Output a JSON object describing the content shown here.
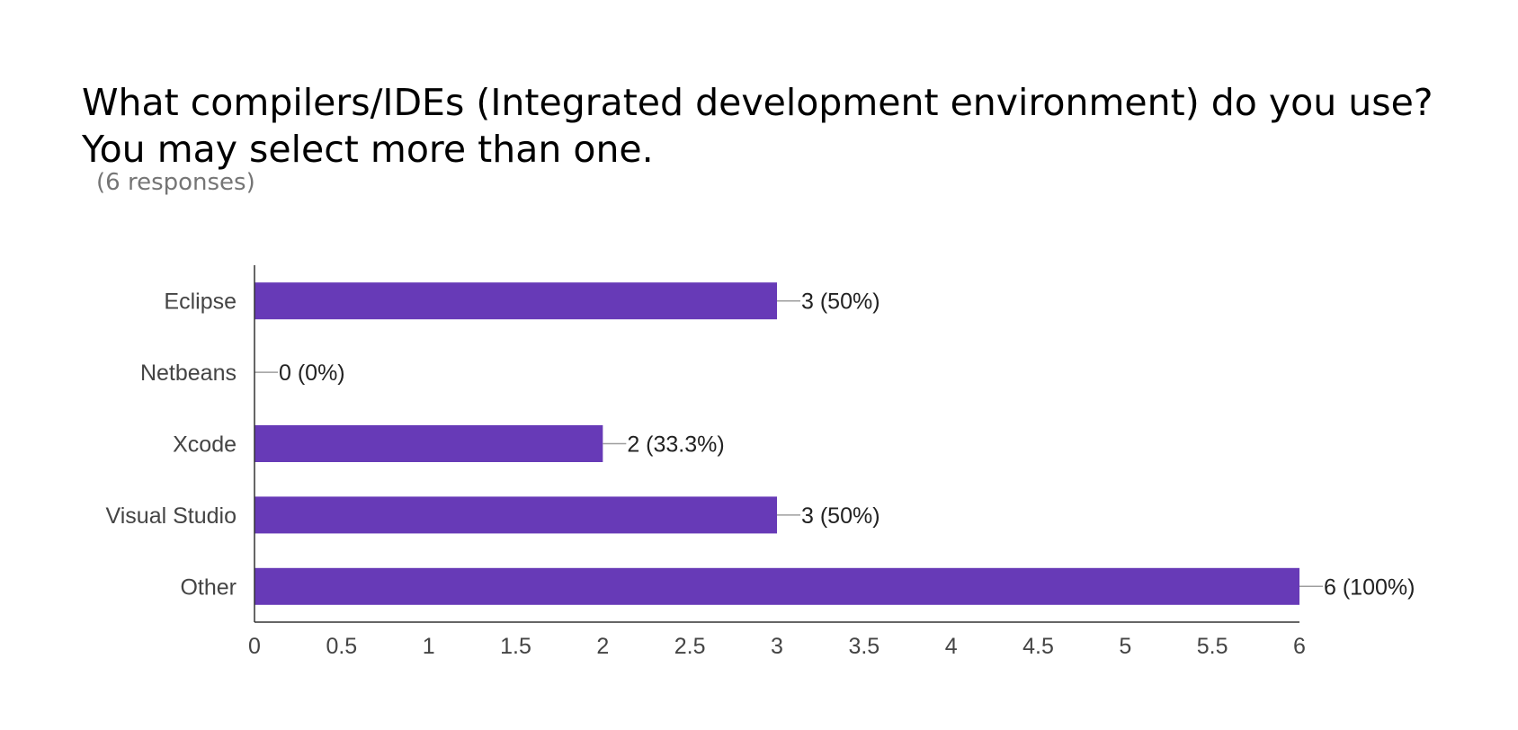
{
  "title": "What compilers/IDEs (Integrated development environment) do you use? You may select more than one.",
  "subtitle": "(6 responses)",
  "colors": {
    "bar": "#673ab7",
    "axis": "#333333",
    "tick_text": "#444444",
    "label_text": "#222222",
    "leader": "#9e9e9e"
  },
  "chart_data": {
    "type": "bar",
    "orientation": "horizontal",
    "categories": [
      "Eclipse",
      "Netbeans",
      "Xcode",
      "Visual Studio",
      "Other"
    ],
    "values": [
      3,
      0,
      2,
      3,
      6
    ],
    "data_labels": [
      "3 (50%)",
      "0 (0%)",
      "2 (33.3%)",
      "3 (50%)",
      "6 (100%)"
    ],
    "xlim": [
      0,
      6
    ],
    "xticks": [
      "0",
      "0.5",
      "1",
      "1.5",
      "2",
      "2.5",
      "3",
      "3.5",
      "4",
      "4.5",
      "5",
      "5.5",
      "6"
    ],
    "grid": false,
    "legend": "none"
  }
}
